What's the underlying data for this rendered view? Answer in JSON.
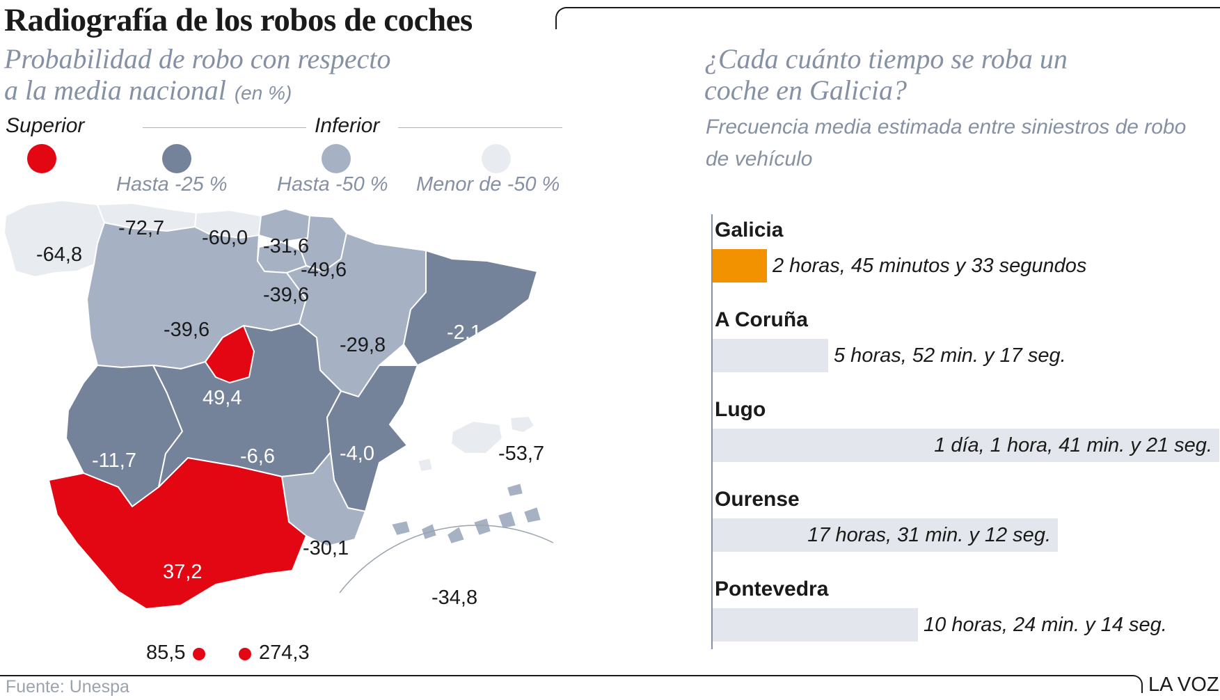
{
  "title": "Radiografía de los robos de coches",
  "footer": {
    "source": "Fuente: Unespa",
    "brand": "LA VOZ"
  },
  "map": {
    "subtitle_line1": "Probabilidad de robo con respecto",
    "subtitle_line2": "a la media nacional",
    "unit": "(en %)",
    "legend": {
      "superior": "Superior",
      "inferior": "Inferior",
      "classes": [
        {
          "label": "",
          "color": "#e30613"
        },
        {
          "label": "Hasta -25 %",
          "color": "#75839a"
        },
        {
          "label": "Hasta -50 %",
          "color": "#a6b1c4"
        },
        {
          "label": "Menor de -50 %",
          "color": "#e8ebf0"
        }
      ]
    },
    "regions": [
      {
        "name": "Galicia",
        "value": "-64,8",
        "color": "#e8ebf0"
      },
      {
        "name": "Asturias",
        "value": "-72,7",
        "color": "#e8ebf0"
      },
      {
        "name": "Cantabria",
        "value": "-60,0",
        "color": "#e8ebf0"
      },
      {
        "name": "País Vasco",
        "value": "-31,6",
        "color": "#a6b1c4"
      },
      {
        "name": "Navarra",
        "value": "-49,6",
        "color": "#a6b1c4"
      },
      {
        "name": "La Rioja",
        "value": "-39,6",
        "color": "#a6b1c4"
      },
      {
        "name": "Castilla y León",
        "value": "-39,6",
        "color": "#a6b1c4"
      },
      {
        "name": "Aragón",
        "value": "-29,8",
        "color": "#a6b1c4"
      },
      {
        "name": "Cataluña",
        "value": "-2,1",
        "color": "#75839a"
      },
      {
        "name": "Madrid",
        "value": "49,4",
        "color": "#e30613"
      },
      {
        "name": "Extremadura",
        "value": "-11,7",
        "color": "#75839a"
      },
      {
        "name": "Castilla-La Mancha",
        "value": "-6,6",
        "color": "#75839a"
      },
      {
        "name": "C. Valenciana",
        "value": "-4,0",
        "color": "#75839a"
      },
      {
        "name": "Baleares",
        "value": "-53,7",
        "color": "#e8ebf0"
      },
      {
        "name": "Murcia",
        "value": "-30,1",
        "color": "#a6b1c4"
      },
      {
        "name": "Andalucía",
        "value": "37,2",
        "color": "#e30613"
      },
      {
        "name": "Canarias",
        "value": "-34,8",
        "color": "#a6b1c4"
      },
      {
        "name": "Ceuta",
        "value": "85,5",
        "color": "#e30613"
      },
      {
        "name": "Melilla",
        "value": "274,3",
        "color": "#e30613"
      }
    ]
  },
  "chart_data": {
    "type": "bar",
    "title": "¿Cada cuánto tiempo se roba un coche en Galicia?",
    "subtitle": "Frecuencia media estimada entre siniestros de robo de vehículo",
    "unit": "hours",
    "categories": [
      "Galicia",
      "A Coruña",
      "Lugo",
      "Ourense",
      "Pontevedra"
    ],
    "values": [
      2.759,
      5.871,
      25.689,
      17.52,
      10.404
    ],
    "labels": [
      "2 horas, 45 minutos y 33 segundos",
      "5 horas, 52 min. y 17 seg.",
      "1 día, 1 hora, 41 min. y 21 seg.",
      "17 horas, 31 min. y 12 seg.",
      "10 horas, 24 min. y 14 seg."
    ],
    "colors": [
      "#f39200",
      "#e3e7ed",
      "#e3e7ed",
      "#e3e7ed",
      "#e3e7ed"
    ],
    "title_line1": "¿Cada cuánto tiempo se roba un",
    "title_line2": "coche en Galicia?",
    "subtitle_line1": "Frecuencia media estimada entre siniestros de robo",
    "subtitle_line2": "de vehículo"
  }
}
